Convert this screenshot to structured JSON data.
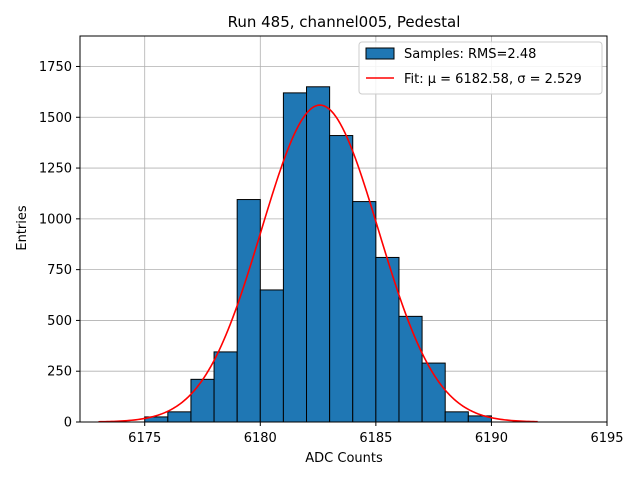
{
  "chart_data": {
    "type": "bar",
    "title": "Run 485, channel005, Pedestal",
    "xlabel": "ADC Counts",
    "ylabel": "Entries",
    "xlim": [
      6172.2,
      6195
    ],
    "ylim": [
      0,
      1900
    ],
    "xticks": [
      6175,
      6180,
      6185,
      6190,
      6195
    ],
    "yticks": [
      0,
      250,
      500,
      750,
      1000,
      1250,
      1500,
      1750
    ],
    "grid": true,
    "legend_position": "top-right",
    "histogram": {
      "name": "Samples: RMS=2.48",
      "color": "#1f77b4",
      "edge_color": "#000000",
      "bins": [
        {
          "x0": 6175.0,
          "x1": 6176.0,
          "value": 25
        },
        {
          "x0": 6176.0,
          "x1": 6177.0,
          "value": 50
        },
        {
          "x0": 6177.0,
          "x1": 6178.0,
          "value": 210
        },
        {
          "x0": 6178.0,
          "x1": 6179.0,
          "value": 345
        },
        {
          "x0": 6179.0,
          "x1": 6180.0,
          "value": 1095
        },
        {
          "x0": 6180.0,
          "x1": 6181.0,
          "value": 650
        },
        {
          "x0": 6181.0,
          "x1": 6182.0,
          "value": 1620
        },
        {
          "x0": 6182.0,
          "x1": 6183.0,
          "value": 1650
        },
        {
          "x0": 6183.0,
          "x1": 6184.0,
          "value": 1410
        },
        {
          "x0": 6184.0,
          "x1": 6185.0,
          "value": 1085
        },
        {
          "x0": 6185.0,
          "x1": 6186.0,
          "value": 810
        },
        {
          "x0": 6186.0,
          "x1": 6187.0,
          "value": 520
        },
        {
          "x0": 6187.0,
          "x1": 6188.0,
          "value": 290
        },
        {
          "x0": 6188.0,
          "x1": 6189.0,
          "value": 50
        },
        {
          "x0": 6189.0,
          "x1": 6190.0,
          "value": 30
        }
      ]
    },
    "fit": {
      "name": "Fit: μ = 6182.58, σ = 2.529",
      "color": "#ff0000",
      "type": "gaussian",
      "mu": 6182.58,
      "sigma": 2.529,
      "amplitude": 1560,
      "x_range": [
        6173,
        6192
      ]
    }
  }
}
